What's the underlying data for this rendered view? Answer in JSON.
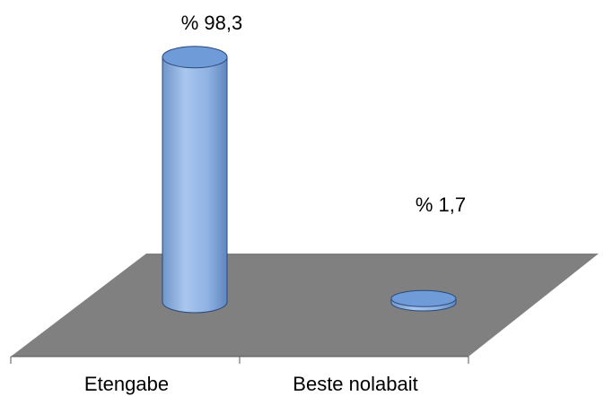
{
  "chart_data": {
    "type": "bar",
    "style": "3d-cylinder",
    "categories": [
      "Etengabe",
      "Beste nolabait"
    ],
    "values": [
      98.3,
      1.7
    ],
    "data_labels": [
      "% 98,3",
      "% 1,7"
    ],
    "ylim": [
      0,
      100
    ],
    "grid": false,
    "legend": "none",
    "title": "",
    "xlabel": "",
    "ylabel": "",
    "colors": {
      "floor": "#808080",
      "bar_body": "#8fb2e4",
      "bar_top": "#6f9bd9",
      "bar_edge": "#2a4a7a",
      "axis": "#555555"
    }
  }
}
